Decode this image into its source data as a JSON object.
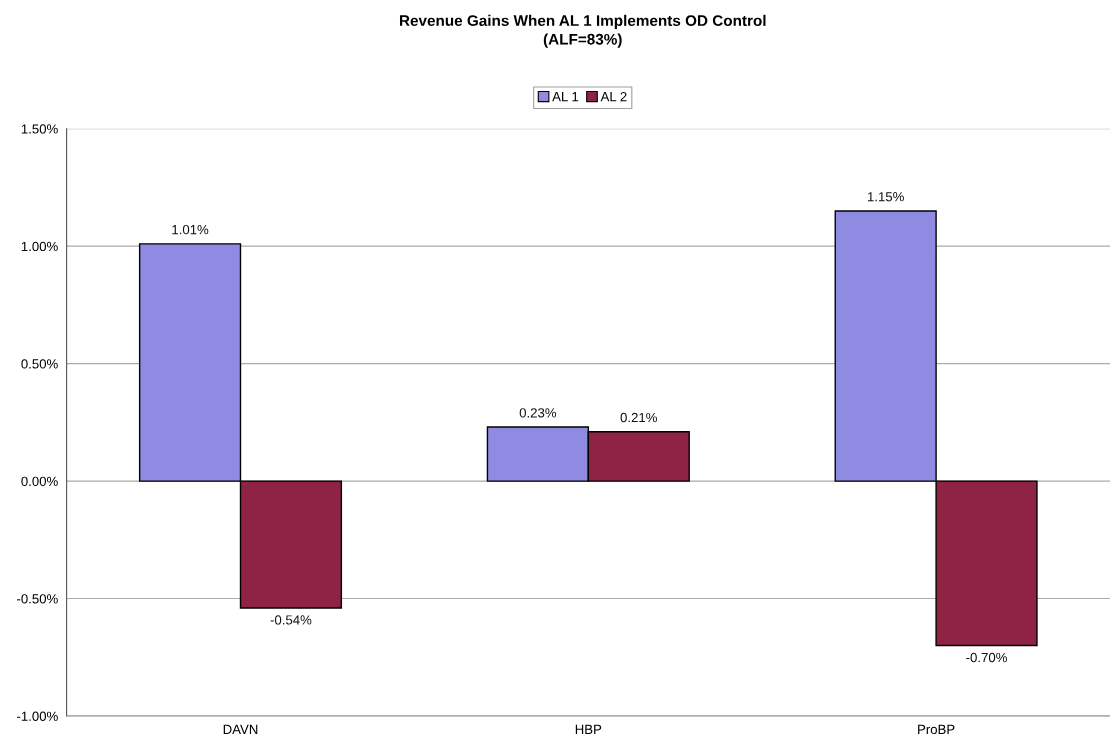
{
  "chart_data": {
    "type": "bar",
    "title": "Revenue Gains When AL 1 Implements OD Control\n(ALF=83%)",
    "categories": [
      "DAVN",
      "HBP",
      "ProBP"
    ],
    "series": [
      {
        "name": "AL 1",
        "color": "#8f8ae2",
        "values": [
          1.01,
          0.23,
          1.15
        ],
        "value_labels": [
          "1.01%",
          "0.23%",
          "1.15%"
        ]
      },
      {
        "name": "AL 2",
        "color": "#8e2343",
        "values": [
          -0.54,
          0.21,
          -0.7
        ],
        "value_labels": [
          "-0.54%",
          "0.21%",
          "-0.70%"
        ]
      }
    ],
    "ylim": [
      -1,
      1.5
    ],
    "yticks": [
      {
        "value": -1,
        "label": "-1.00%"
      },
      {
        "value": -0.5,
        "label": "-0.50%"
      },
      {
        "value": 0,
        "label": "0.00%"
      },
      {
        "value": 0.5,
        "label": "0.50%"
      },
      {
        "value": 1,
        "label": "1.00%"
      },
      {
        "value": 1.5,
        "label": "1.50%"
      }
    ],
    "grid": "y",
    "legend": "top"
  }
}
